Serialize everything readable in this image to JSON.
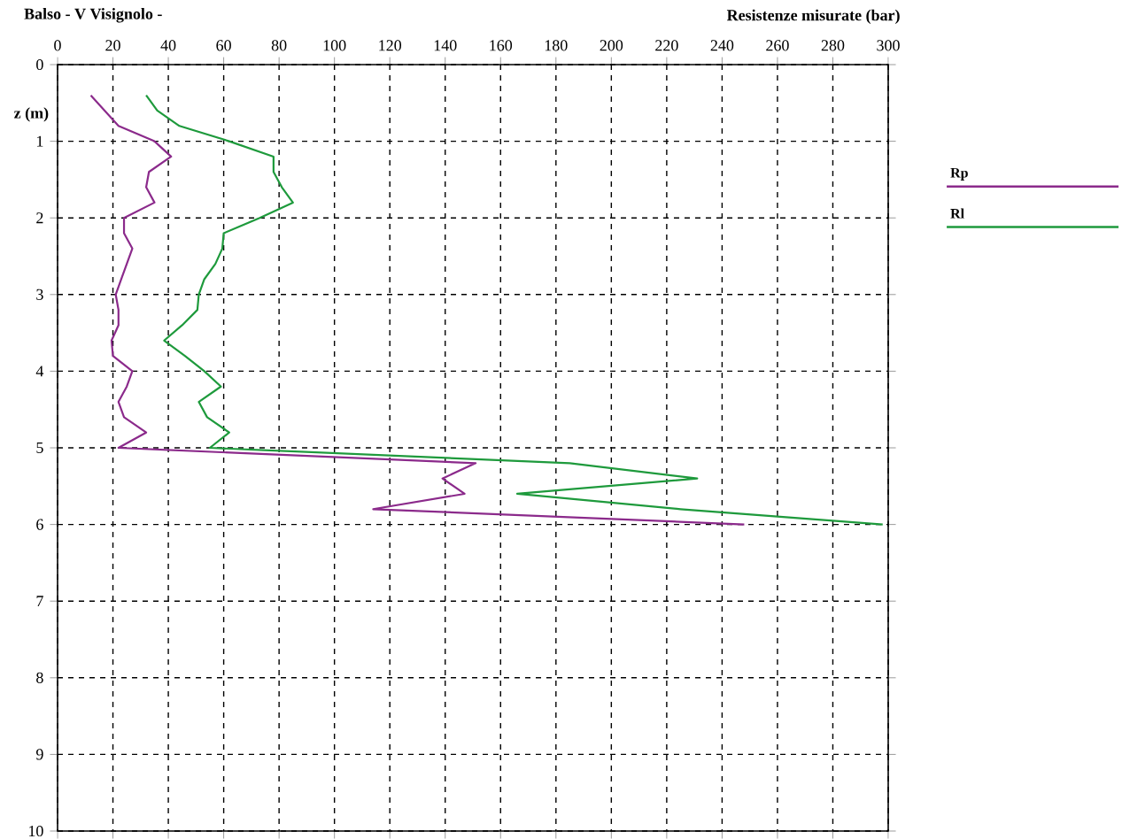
{
  "chart_data": {
    "type": "line",
    "title": "Balso - V Visignolo -",
    "xlabel": "Resistenze misurate (bar)",
    "ylabel": "z (m)",
    "xlim": [
      0,
      300
    ],
    "xticks": [
      0,
      20,
      40,
      60,
      80,
      100,
      120,
      140,
      160,
      180,
      200,
      220,
      240,
      260,
      280,
      300
    ],
    "ylim": [
      10,
      0
    ],
    "yticks": [
      0,
      1,
      2,
      3,
      4,
      5,
      6,
      7,
      8,
      9,
      10
    ],
    "grid": true,
    "legend": "right",
    "line_style": "solid",
    "marker": "none",
    "series": [
      {
        "name": "Rp",
        "color": "#8b2a8b",
        "x": [
          12,
          17,
          22,
          35,
          41,
          33,
          32,
          35,
          24,
          24,
          27,
          25,
          23,
          21,
          22,
          22,
          19.5,
          20,
          27,
          25,
          22,
          24,
          32,
          22,
          151,
          139,
          147,
          114,
          248
        ],
        "values": [
          0.4,
          0.6,
          0.8,
          1.0,
          1.2,
          1.4,
          1.6,
          1.8,
          2.0,
          2.2,
          2.4,
          2.6,
          2.8,
          3.0,
          3.2,
          3.4,
          3.6,
          3.8,
          4.0,
          4.2,
          4.4,
          4.6,
          4.8,
          5.0,
          5.2,
          5.4,
          5.6,
          5.8,
          6.0
        ]
      },
      {
        "name": "Rl",
        "color": "#1e9a3c",
        "x": [
          32,
          36,
          44,
          62,
          78,
          78,
          81,
          85,
          73,
          60,
          59.5,
          57,
          53,
          51,
          50.5,
          45,
          38.5,
          46,
          53,
          59,
          51,
          54,
          62,
          55,
          185,
          231,
          166,
          225,
          298
        ],
        "values": [
          0.4,
          0.6,
          0.8,
          1.0,
          1.2,
          1.4,
          1.6,
          1.8,
          2.0,
          2.2,
          2.4,
          2.6,
          2.8,
          3.0,
          3.2,
          3.4,
          3.6,
          3.8,
          4.0,
          4.2,
          4.4,
          4.6,
          4.8,
          5.0,
          5.2,
          5.4,
          5.6,
          5.8,
          6.0
        ]
      }
    ]
  }
}
